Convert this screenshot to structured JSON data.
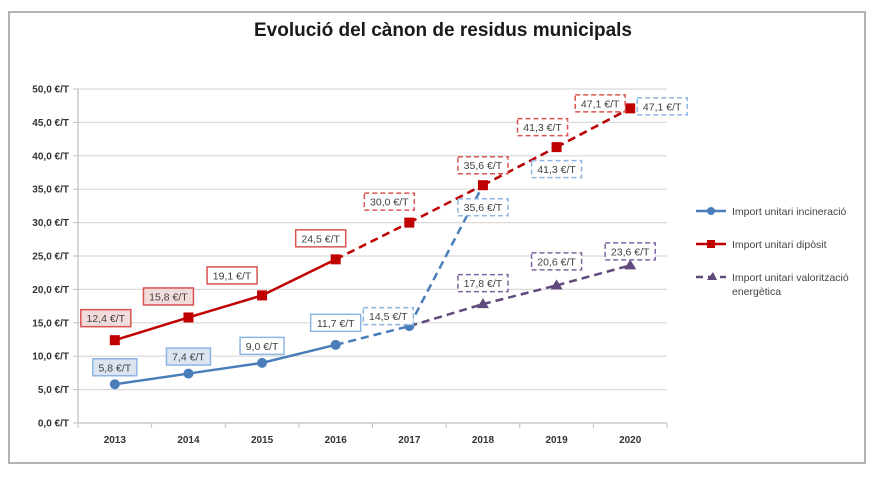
{
  "chart_data": {
    "type": "line",
    "title": "Evolució del cànon de residus municipals",
    "xlabel": "",
    "ylabel": "",
    "categories": [
      "2013",
      "2014",
      "2015",
      "2016",
      "2017",
      "2018",
      "2019",
      "2020"
    ],
    "ylim": [
      0,
      50
    ],
    "ytick_step": 5,
    "ytick_labels": [
      "0,0 €/T",
      "5,0 €/T",
      "10,0 €/T",
      "15,0 €/T",
      "20,0 €/T",
      "25,0 €/T",
      "30,0 €/T",
      "35,0 €/T",
      "40,0 €/T",
      "45,0 €/T",
      "50,0 €/T"
    ],
    "grid": true,
    "legend_position": "right",
    "series": [
      {
        "name": "Import unitari incineració",
        "color": "#4a7ebb",
        "marker": "circle",
        "values": [
          5.8,
          7.4,
          9.0,
          11.7,
          14.5,
          35.6,
          41.3,
          47.1
        ],
        "labels": [
          "5,8 €/T",
          "7,4 €/T",
          "9,0 €/T",
          "11,7 €/T",
          "14,5 €/T",
          "35,6 €/T",
          "41,3 €/T",
          "47,1 €/T"
        ],
        "solid_until_index": 3,
        "markers_until_index": 4
      },
      {
        "name": "Import unitari dipòsit",
        "color": "#c00000",
        "marker": "square",
        "values": [
          12.4,
          15.8,
          19.1,
          24.5,
          30.0,
          35.6,
          41.3,
          47.1
        ],
        "labels": [
          "12,4 €/T",
          "15,8 €/T",
          "19,1 €/T",
          "24,5 €/T",
          "30,0 €/T",
          "35,6 €/T",
          "41,3 €/T",
          "47,1 €/T"
        ],
        "solid_until_index": 3,
        "markers_until_index": 7
      },
      {
        "name": "Import unitari valorització energètica",
        "color": "#604a7b",
        "marker": "triangle",
        "values": [
          null,
          null,
          null,
          null,
          14.5,
          17.8,
          20.6,
          23.6
        ],
        "labels": [
          null,
          null,
          null,
          null,
          null,
          "17,8 €/T",
          "20,6 €/T",
          "23,6 €/T"
        ],
        "solid_until_index": -1,
        "markers_until_index": 7
      }
    ]
  }
}
